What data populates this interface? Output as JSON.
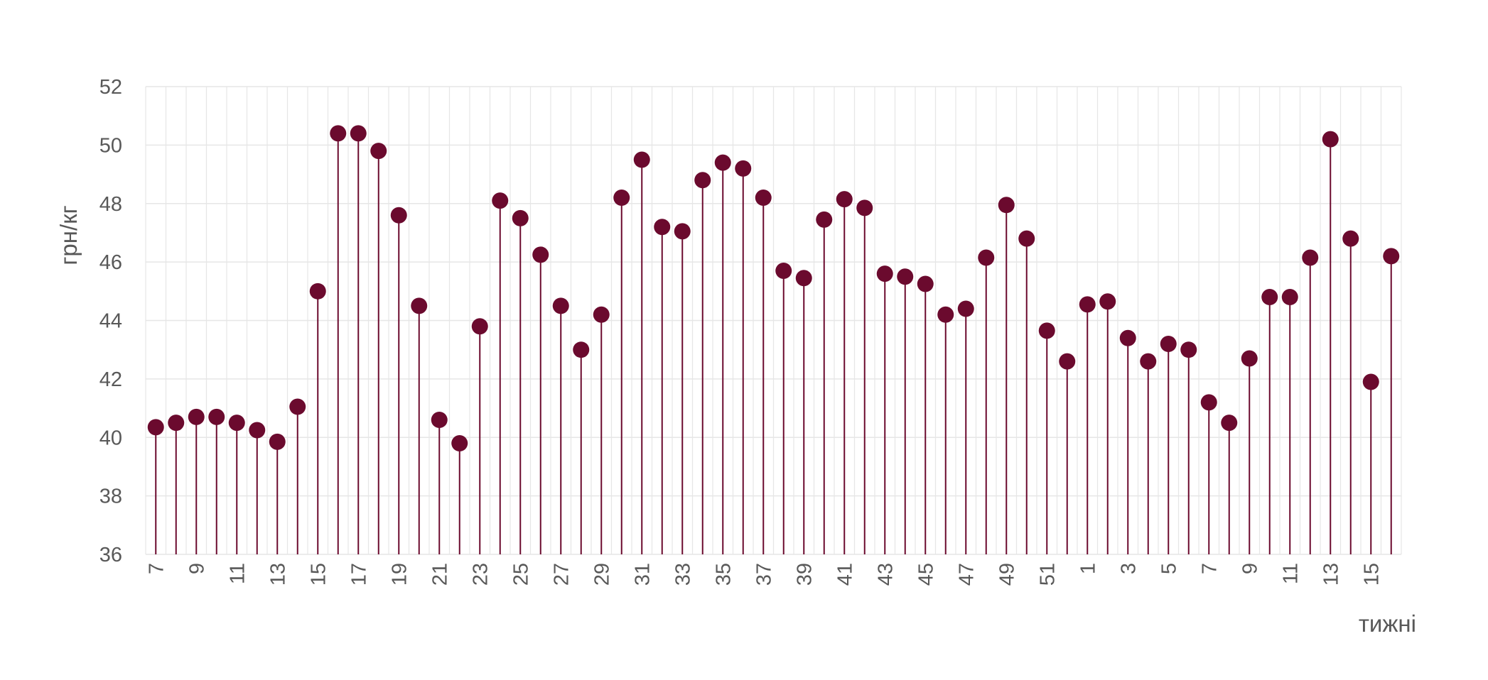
{
  "chart_data": {
    "type": "lollipop",
    "xlabel": "тижні",
    "ylabel": "грн/кг",
    "ylim": [
      36,
      52
    ],
    "y_ticks": [
      36,
      38,
      40,
      42,
      44,
      46,
      48,
      50,
      52
    ],
    "grid": true,
    "categories": [
      "7",
      "8",
      "9",
      "10",
      "11",
      "12",
      "13",
      "14",
      "15",
      "16",
      "17",
      "18",
      "19",
      "20",
      "21",
      "22",
      "23",
      "24",
      "25",
      "26",
      "27",
      "28",
      "29",
      "30",
      "31",
      "32",
      "33",
      "34",
      "35",
      "36",
      "37",
      "38",
      "39",
      "40",
      "41",
      "42",
      "43",
      "44",
      "45",
      "46",
      "47",
      "48",
      "49",
      "50",
      "51",
      "52",
      "1",
      "2",
      "3",
      "4",
      "5",
      "6",
      "7",
      "8",
      "9",
      "10",
      "11",
      "12",
      "13",
      "14",
      "15",
      "16"
    ],
    "x_tick_labels": [
      "7",
      "",
      "9",
      "",
      "11",
      "",
      "13",
      "",
      "15",
      "",
      "17",
      "",
      "19",
      "",
      "21",
      "",
      "23",
      "",
      "25",
      "",
      "27",
      "",
      "29",
      "",
      "31",
      "",
      "33",
      "",
      "35",
      "",
      "37",
      "",
      "39",
      "",
      "41",
      "",
      "43",
      "",
      "45",
      "",
      "47",
      "",
      "49",
      "",
      "51",
      "",
      "1",
      "",
      "3",
      "",
      "5",
      "",
      "7",
      "",
      "9",
      "",
      "11",
      "",
      "13",
      "",
      "15",
      ""
    ],
    "values": [
      40.35,
      40.5,
      40.7,
      40.7,
      40.5,
      40.25,
      39.85,
      41.05,
      45.0,
      50.4,
      50.4,
      49.8,
      47.6,
      44.5,
      40.6,
      39.8,
      43.8,
      48.1,
      47.5,
      46.25,
      44.5,
      43.0,
      44.2,
      48.2,
      49.5,
      47.2,
      47.05,
      48.8,
      49.4,
      49.2,
      48.2,
      45.7,
      45.45,
      47.45,
      48.15,
      47.85,
      45.6,
      45.5,
      45.25,
      44.2,
      44.4,
      46.15,
      47.95,
      46.8,
      43.65,
      42.6,
      44.55,
      44.65,
      43.4,
      42.6,
      43.2,
      43.0,
      41.2,
      40.5,
      42.7,
      44.8,
      44.8,
      46.15,
      50.2,
      46.8,
      41.9,
      46.2
    ],
    "colors": {
      "series": "#6b0a2e",
      "grid": "#e6e6e6",
      "text": "#595959"
    }
  }
}
